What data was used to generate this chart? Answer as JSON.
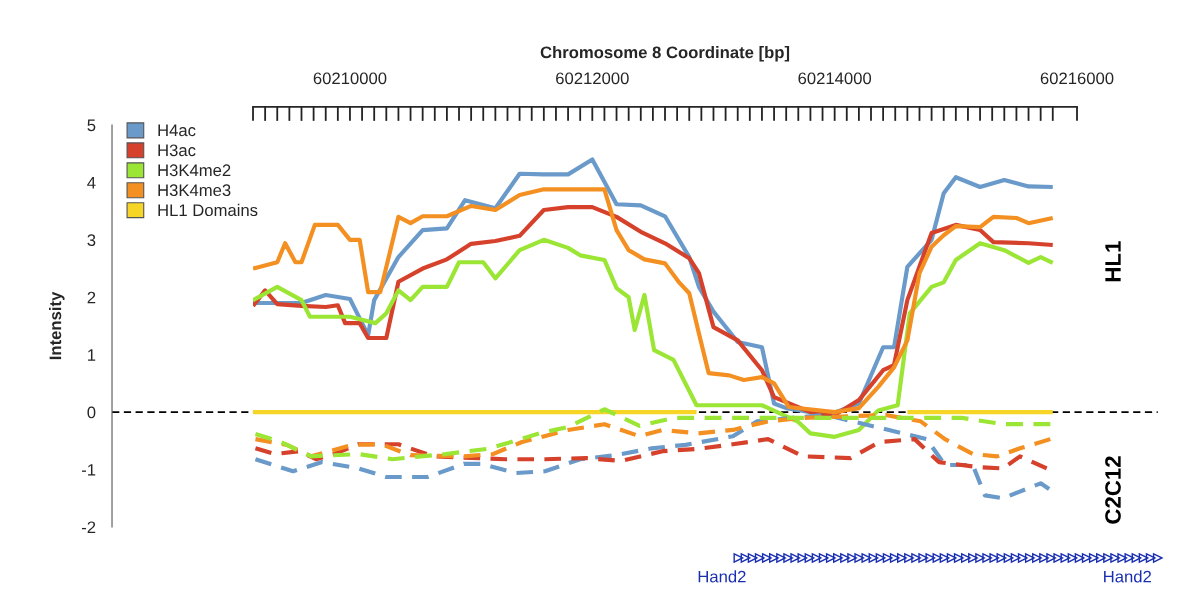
{
  "chart_data": {
    "type": "line",
    "xlabel": "Chromosome 8 Coordinate [bp]",
    "ylabel": "Intensity",
    "xlim": [
      60209200,
      60216000
    ],
    "ylim": [
      -2,
      5
    ],
    "xticks": [
      {
        "value": 60209200,
        "label": null
      },
      {
        "value": 60209300,
        "label": null
      },
      {
        "value": 60209400,
        "label": null
      },
      {
        "value": 60209500,
        "label": null
      },
      {
        "value": 60209600,
        "label": null
      },
      {
        "value": 60209700,
        "label": null
      },
      {
        "value": 60209800,
        "label": null
      },
      {
        "value": 60209900,
        "label": null
      },
      60210000,
      {
        "value": 60210100,
        "label": null
      },
      {
        "value": 60210200,
        "label": null
      },
      {
        "value": 60210300,
        "label": null
      },
      {
        "value": 60210400,
        "label": null
      },
      {
        "value": 60210500,
        "label": null
      },
      {
        "value": 60210600,
        "label": null
      },
      {
        "value": 60210700,
        "label": null
      },
      {
        "value": 60210800,
        "label": null
      },
      {
        "value": 60210900,
        "label": null
      },
      {
        "value": 60211000,
        "label": null
      },
      {
        "value": 60211100,
        "label": null
      },
      {
        "value": 60211200,
        "label": null
      },
      {
        "value": 60211300,
        "label": null
      },
      {
        "value": 60211400,
        "label": null
      },
      {
        "value": 60211500,
        "label": null
      },
      {
        "value": 60211600,
        "label": null
      },
      {
        "value": 60211700,
        "label": null
      },
      {
        "value": 60211800,
        "label": null
      },
      {
        "value": 60211900,
        "label": null
      },
      60212000,
      {
        "value": 60212100,
        "label": null
      },
      {
        "value": 60212200,
        "label": null
      },
      {
        "value": 60212300,
        "label": null
      },
      {
        "value": 60212400,
        "label": null
      },
      {
        "value": 60212500,
        "label": null
      },
      {
        "value": 60212600,
        "label": null
      },
      {
        "value": 60212700,
        "label": null
      },
      {
        "value": 60212800,
        "label": null
      },
      {
        "value": 60212900,
        "label": null
      },
      {
        "value": 60213000,
        "label": null
      },
      {
        "value": 60213100,
        "label": null
      },
      {
        "value": 60213200,
        "label": null
      },
      {
        "value": 60213300,
        "label": null
      },
      {
        "value": 60213400,
        "label": null
      },
      {
        "value": 60213500,
        "label": null
      },
      {
        "value": 60213600,
        "label": null
      },
      {
        "value": 60213700,
        "label": null
      },
      {
        "value": 60213800,
        "label": null
      },
      {
        "value": 60213900,
        "label": null
      },
      60214000,
      {
        "value": 60214100,
        "label": null
      },
      {
        "value": 60214200,
        "label": null
      },
      {
        "value": 60214300,
        "label": null
      },
      {
        "value": 60214400,
        "label": null
      },
      {
        "value": 60214500,
        "label": null
      },
      {
        "value": 60214600,
        "label": null
      },
      {
        "value": 60214700,
        "label": null
      },
      {
        "value": 60214800,
        "label": null
      },
      {
        "value": 60214900,
        "label": null
      },
      {
        "value": 60215000,
        "label": null
      },
      {
        "value": 60215100,
        "label": null
      },
      {
        "value": 60215200,
        "label": null
      },
      {
        "value": 60215300,
        "label": null
      },
      {
        "value": 60215400,
        "label": null
      },
      {
        "value": 60215500,
        "label": null
      },
      {
        "value": 60215600,
        "label": null
      },
      {
        "value": 60215700,
        "label": null
      },
      {
        "value": 60215800,
        "label": null
      },
      60216000
    ],
    "yticks": [
      -2,
      -1,
      0,
      1,
      2,
      3,
      4,
      5
    ],
    "grid": false,
    "legend": "top left",
    "marker": "none",
    "ref_lines": [
      {
        "axis": "y",
        "value": 0,
        "color": "#000000",
        "line_style": "dashed"
      }
    ],
    "annotations": [
      "HL1",
      "C2C12",
      "Hand2",
      "Hand2"
    ],
    "series": [
      {
        "name": "H4ac",
        "color": "#6a9ac9",
        "line_style": "solid",
        "x": [
          60209200,
          60209400,
          60209600,
          60209800,
          60210000,
          60210150,
          60210200,
          60210400,
          60210600,
          60210800,
          60210950,
          60211200,
          60211400,
          60211600,
          60211800,
          60212000,
          60212200,
          60212400,
          60212600,
          60212800,
          60212880,
          60213000,
          60213200,
          60213400,
          60213500,
          60213600,
          60213800,
          60213950,
          60214200,
          60214400,
          60214490,
          60214600,
          60214800,
          60214900,
          60215000,
          60215200,
          60215400,
          60215600,
          60215800
        ],
        "values": [
          1.9,
          1.9,
          1.9,
          2.04,
          1.97,
          1.34,
          1.95,
          2.7,
          3.17,
          3.2,
          3.69,
          3.55,
          4.15,
          4.14,
          4.14,
          4.4,
          3.62,
          3.6,
          3.41,
          2.7,
          2.18,
          1.75,
          1.22,
          1.13,
          0.15,
          0.07,
          0.0,
          -0.05,
          0.15,
          1.13,
          1.13,
          2.53,
          3.0,
          3.81,
          4.09,
          3.92,
          4.04,
          3.93,
          3.92
        ]
      },
      {
        "name": "H3ac",
        "color": "#d6412b",
        "line_style": "solid",
        "x": [
          60209200,
          60209300,
          60209400,
          60209600,
          60209800,
          60209900,
          60209960,
          60210080,
          60210150,
          60210300,
          60210400,
          60210600,
          60210800,
          60211000,
          60211200,
          60211400,
          60211600,
          60211800,
          60212000,
          60212200,
          60212400,
          60212600,
          60212800,
          60212880,
          60213000,
          60213200,
          60213400,
          60213500,
          60213800,
          60214000,
          60214200,
          60214400,
          60214490,
          60214600,
          60214800,
          60215000,
          60215200,
          60215310,
          60215600,
          60215800
        ],
        "values": [
          1.85,
          2.12,
          1.88,
          1.85,
          1.83,
          1.86,
          1.55,
          1.55,
          1.29,
          1.29,
          2.27,
          2.5,
          2.66,
          2.93,
          2.98,
          3.07,
          3.52,
          3.57,
          3.57,
          3.4,
          3.14,
          2.94,
          2.68,
          2.42,
          1.48,
          1.25,
          0.73,
          0.26,
          0.0,
          -0.05,
          0.21,
          0.73,
          0.82,
          1.95,
          3.12,
          3.26,
          3.17,
          2.96,
          2.94,
          2.91
        ]
      },
      {
        "name": "H3K4me2",
        "color": "#9be535",
        "line_style": "solid",
        "x": [
          60209200,
          60209400,
          60209600,
          60209670,
          60210000,
          60210210,
          60210300,
          60210400,
          60210500,
          60210600,
          60210800,
          60210900,
          60211100,
          60211200,
          60211400,
          60211600,
          60211800,
          60211900,
          60212100,
          60212200,
          60212300,
          60212350,
          60212430,
          60212510,
          60212670,
          60212860,
          60213050,
          60213400,
          60213700,
          60213800,
          60214000,
          60214200,
          60214360,
          60214520,
          60214620,
          60214800,
          60214900,
          60215000,
          60215200,
          60215400,
          60215600,
          60215700,
          60215800
        ],
        "values": [
          1.95,
          2.18,
          1.95,
          1.66,
          1.66,
          1.55,
          1.72,
          2.12,
          1.95,
          2.18,
          2.18,
          2.61,
          2.61,
          2.33,
          2.82,
          3.0,
          2.86,
          2.73,
          2.65,
          2.16,
          2.0,
          1.43,
          2.04,
          1.08,
          0.91,
          0.12,
          0.12,
          0.12,
          -0.17,
          -0.37,
          -0.43,
          -0.31,
          0.03,
          0.12,
          1.72,
          2.18,
          2.26,
          2.65,
          2.94,
          2.82,
          2.6,
          2.7,
          2.6
        ]
      },
      {
        "name": "H3K4me3",
        "color": "#f39021",
        "line_style": "solid",
        "x": [
          60209200,
          60209400,
          60209465,
          60209550,
          60209600,
          60209710,
          60209900,
          60210000,
          60210080,
          60210150,
          60210250,
          60210400,
          60210500,
          60210600,
          60210800,
          60211000,
          60211200,
          60211400,
          60211600,
          60211800,
          60212100,
          60212200,
          60212300,
          60212430,
          60212600,
          60212720,
          60212800,
          60212880,
          60212960,
          60213130,
          60213250,
          60213400,
          60213500,
          60213620,
          60214000,
          60214200,
          60214360,
          60214490,
          60214600,
          60214700,
          60214800,
          60214900,
          60215000,
          60215200,
          60215310,
          60215500,
          60215600,
          60215800
        ],
        "values": [
          2.5,
          2.61,
          2.94,
          2.61,
          2.61,
          3.26,
          3.26,
          3.0,
          3.0,
          2.09,
          2.09,
          3.4,
          3.29,
          3.41,
          3.41,
          3.59,
          3.52,
          3.78,
          3.88,
          3.88,
          3.88,
          3.17,
          2.82,
          2.66,
          2.59,
          2.25,
          2.07,
          1.37,
          0.68,
          0.64,
          0.56,
          0.61,
          0.5,
          0.09,
          0.0,
          0.07,
          0.44,
          0.78,
          1.25,
          2.42,
          2.88,
          3.08,
          3.24,
          3.22,
          3.4,
          3.38,
          3.29,
          3.38
        ]
      },
      {
        "name": "HL1 Domains",
        "color": "#f7d527",
        "line_style": "solid",
        "x": [
          60209200,
          60212860,
          60213700,
          60214600,
          60215800
        ],
        "values": [
          0,
          0,
          null,
          0,
          0
        ]
      },
      {
        "color": "#6a9ac9",
        "line_style": "dashed",
        "x": [
          60209220,
          60209530,
          60209770,
          60210070,
          60210300,
          60210640,
          60210940,
          60211080,
          60211370,
          60211610,
          60211900,
          60212190,
          60212490,
          60212770,
          60213160,
          60213360,
          60213650,
          60213930,
          60214760,
          60214910,
          60215140,
          60215240,
          60215390,
          60215580,
          60215700,
          60215770
        ],
        "values": [
          -0.82,
          -1.03,
          -0.87,
          -0.98,
          -1.13,
          -1.13,
          -0.9,
          -0.9,
          -1.06,
          -1.03,
          -0.82,
          -0.75,
          -0.63,
          -0.57,
          -0.42,
          -0.16,
          -0.1,
          -0.05,
          -0.47,
          -0.92,
          -0.92,
          -1.45,
          -1.5,
          -1.34,
          -1.24,
          -1.34
        ]
      },
      {
        "color": "#d6412b",
        "line_style": "dashed",
        "x": [
          60209220,
          60209380,
          60209580,
          60209720,
          60209870,
          60210070,
          60210400,
          60210690,
          60211280,
          60211610,
          60211950,
          60212240,
          60212580,
          60212870,
          60213160,
          60213450,
          60213740,
          60214130,
          60214370,
          60214660,
          60214860,
          60215190,
          60215390,
          60215530,
          60215750
        ],
        "values": [
          -0.63,
          -0.73,
          -0.68,
          -0.82,
          -0.73,
          -0.56,
          -0.56,
          -0.77,
          -0.82,
          -0.82,
          -0.8,
          -0.85,
          -0.68,
          -0.64,
          -0.56,
          -0.47,
          -0.77,
          -0.8,
          -0.52,
          -0.47,
          -0.87,
          -0.96,
          -0.98,
          -0.77,
          -0.98
        ]
      },
      {
        "color": "#f39021",
        "line_style": "dashed",
        "x": [
          60209220,
          60209480,
          60209680,
          60210020,
          60210260,
          60210500,
          60210940,
          60211180,
          60211420,
          60211800,
          60212100,
          60212390,
          60212580,
          60212870,
          60213160,
          60213450,
          60213740,
          60214420,
          60214710,
          60214910,
          60215140,
          60215340,
          60215530,
          60215780
        ],
        "values": [
          -0.47,
          -0.57,
          -0.77,
          -0.57,
          -0.56,
          -0.75,
          -0.77,
          -0.73,
          -0.52,
          -0.31,
          -0.21,
          -0.42,
          -0.31,
          -0.37,
          -0.31,
          -0.16,
          -0.1,
          -0.05,
          -0.16,
          -0.47,
          -0.73,
          -0.77,
          -0.63,
          -0.47
        ]
      },
      {
        "color": "#9be535",
        "line_style": "dashed",
        "x": [
          60209220,
          60209430,
          60209680,
          60210070,
          60210350,
          60210790,
          60211130,
          60211330,
          60211560,
          60211800,
          60212100,
          60212390,
          60212670,
          60212970,
          60214620,
          60215050,
          60215390,
          60215780
        ],
        "values": [
          -0.38,
          -0.52,
          -0.77,
          -0.73,
          -0.82,
          -0.73,
          -0.64,
          -0.52,
          -0.37,
          -0.26,
          0.05,
          -0.24,
          -0.1,
          -0.1,
          -0.1,
          -0.1,
          -0.21,
          -0.21
        ]
      }
    ]
  }
}
